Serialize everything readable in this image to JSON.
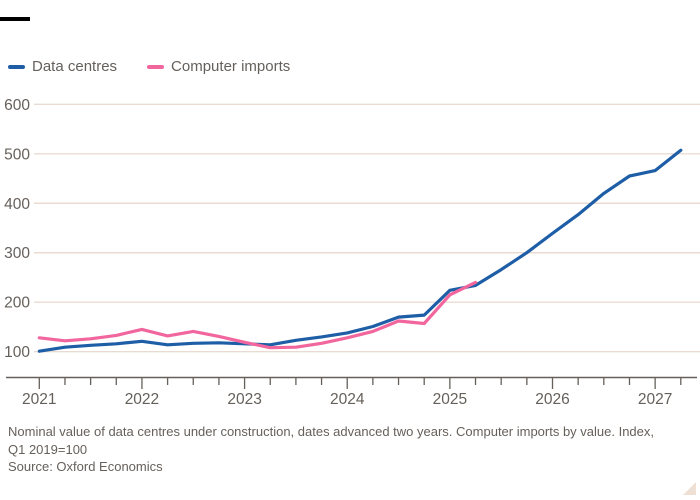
{
  "branding": {
    "top_bar_color": "#000000",
    "corner_triangle_color": "#efe0d5"
  },
  "colors": {
    "background": "#ffffff",
    "grid": "#e9dbd2",
    "axis": "#66605b",
    "text": "#66605b",
    "data_centres_line": "#1e5ea6",
    "computer_imports_line": "#f2669e"
  },
  "legend": {
    "items": [
      {
        "label": "Data centres",
        "color": "#1e5ea6"
      },
      {
        "label": "Computer imports",
        "color": "#f2669e"
      }
    ]
  },
  "chart_data": {
    "type": "line",
    "title": "",
    "categories": [
      "2021 Q1",
      "2021 Q2",
      "2021 Q3",
      "2021 Q4",
      "2022 Q1",
      "2022 Q2",
      "2022 Q3",
      "2022 Q4",
      "2023 Q1",
      "2023 Q2",
      "2023 Q3",
      "2023 Q4",
      "2024 Q1",
      "2024 Q2",
      "2024 Q3",
      "2024 Q4",
      "2025 Q1",
      "2025 Q2",
      "2025 Q3",
      "2025 Q4",
      "2026 Q1",
      "2026 Q2",
      "2026 Q3",
      "2026 Q4",
      "2027 Q1",
      "2027 Q2"
    ],
    "series": [
      {
        "name": "Data centres",
        "color": "#1e5ea6",
        "values": [
          101,
          109,
          113,
          116,
          121,
          114,
          117,
          118,
          116,
          114,
          123,
          130,
          138,
          151,
          170,
          174,
          224,
          234,
          266,
          300,
          339,
          377,
          420,
          455,
          466,
          507
        ]
      },
      {
        "name": "Computer imports",
        "color": "#f2669e",
        "values": [
          128,
          122,
          126,
          133,
          145,
          132,
          141,
          131,
          119,
          108,
          109,
          117,
          128,
          141,
          162,
          157,
          215,
          240
        ]
      }
    ],
    "yticks": [
      100,
      200,
      300,
      400,
      500,
      600
    ],
    "xtick_year_labels": [
      "2021",
      "2022",
      "2023",
      "2024",
      "2025",
      "2026",
      "2027"
    ],
    "minor_ticks_per_year": 4,
    "ylim": [
      100,
      600
    ],
    "grid": "horizontal-only",
    "legend_position": "top-left"
  },
  "footnote": {
    "note_line1": "Nominal value of data centres under construction, dates advanced two years. Computer imports by value. Index,",
    "note_line2": "Q1 2019=100",
    "source": "Source: Oxford Economics"
  }
}
